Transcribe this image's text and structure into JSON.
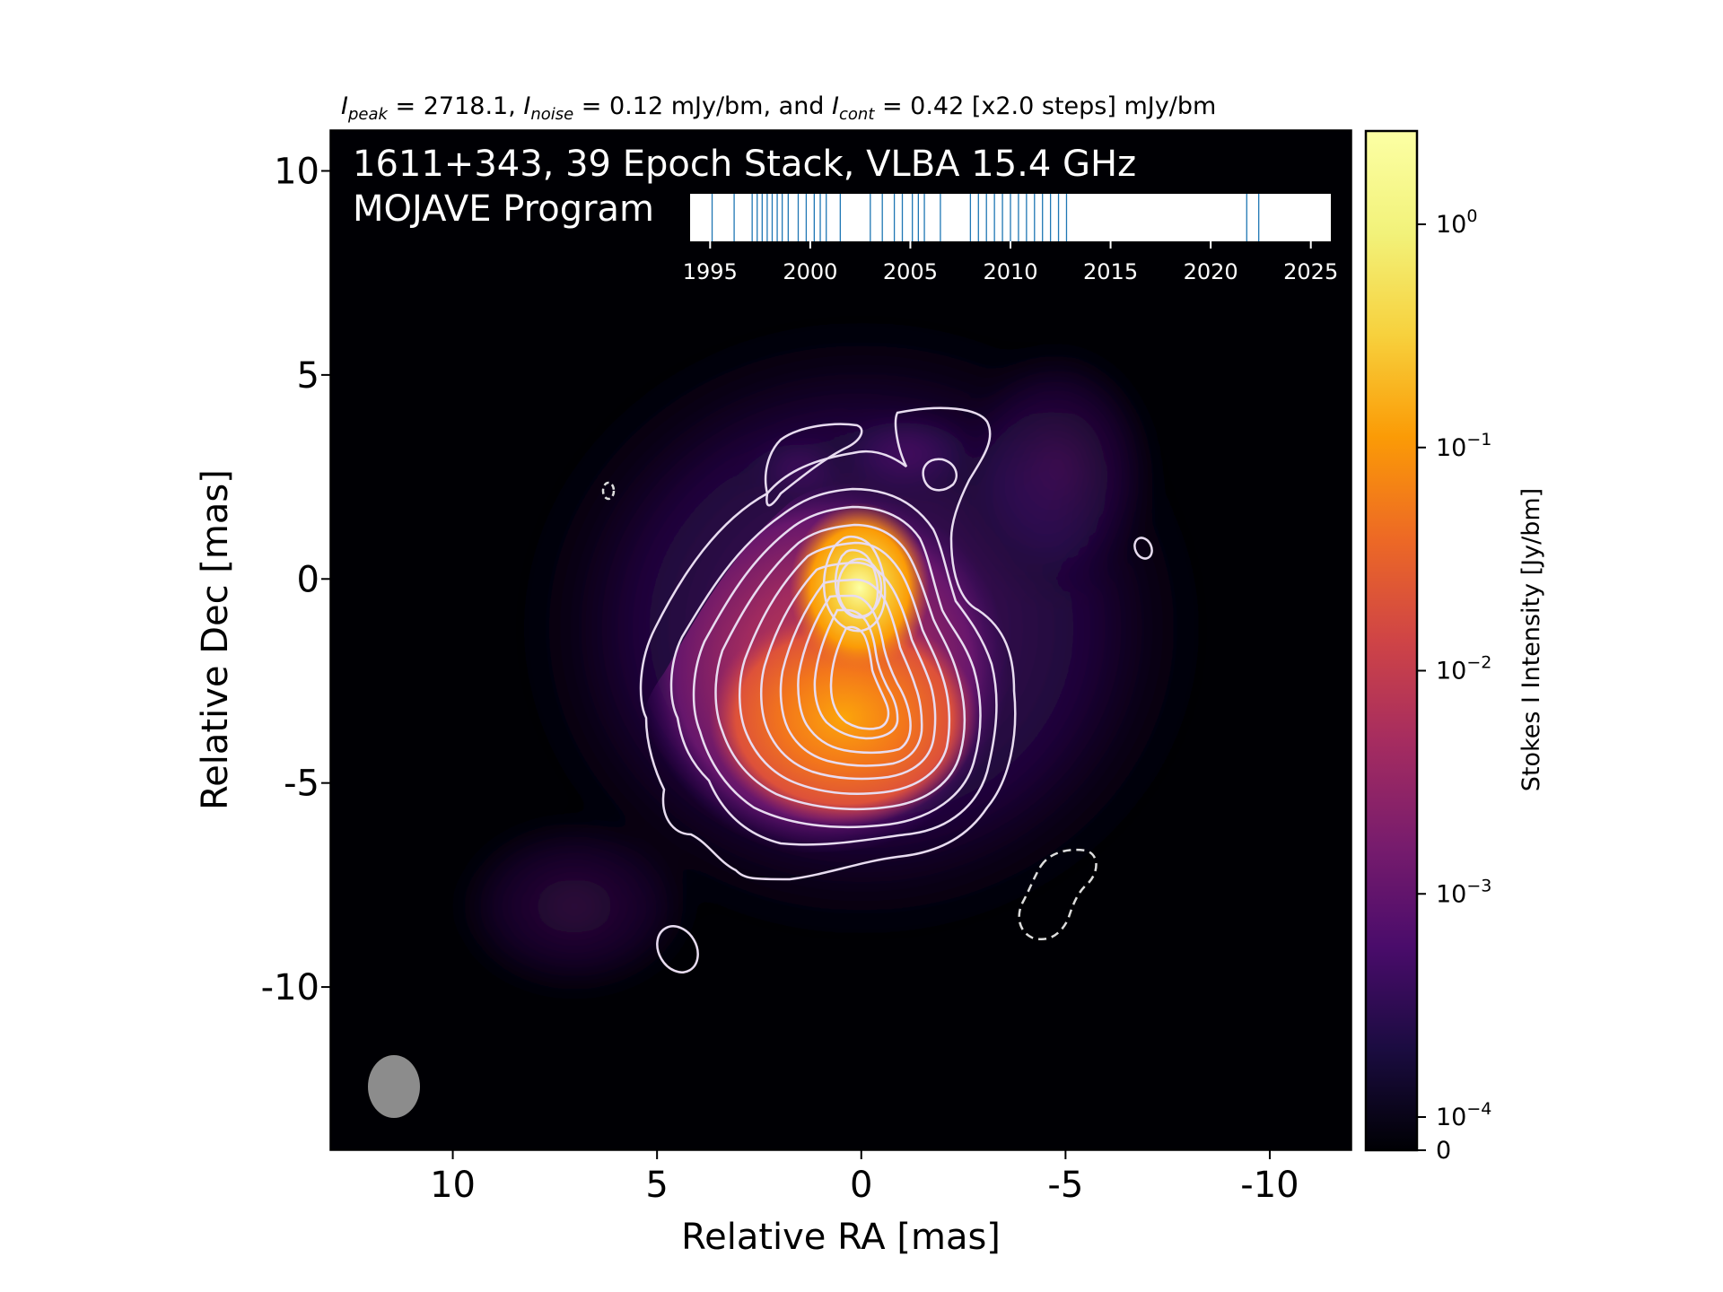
{
  "header": {
    "i_peak_sym": "I",
    "i_peak_sub": "peak",
    "i_peak_val": " = 2718.1, ",
    "i_noise_sym": "I",
    "i_noise_sub": "noise",
    "i_noise_val": " = 0.12 mJy/bm, and ",
    "i_cont_sym": "I",
    "i_cont_sub": "cont",
    "i_cont_val": " = 0.42 [x2.0 steps] mJy/bm"
  },
  "overlay": {
    "line1": "1611+343, 39 Epoch Stack, VLBA 15.4 GHz",
    "line2": "MOJAVE Program"
  },
  "colors": {
    "background": "#000000",
    "contour": "#ffffff",
    "beam": "#8c8c8c",
    "epoch_line": "#1f77b4"
  },
  "chart_data": [
    {
      "type": "heatmap",
      "title": "",
      "xlabel": "Relative RA [mas]",
      "ylabel": "Relative Dec [mas]",
      "xlim": [
        13,
        -12
      ],
      "ylim": [
        -14,
        11
      ],
      "xticks": [
        10,
        5,
        0,
        -5,
        -10
      ],
      "xtick_labels": [
        "10",
        "5",
        "0",
        "-5",
        "-10"
      ],
      "yticks": [
        10,
        5,
        0,
        -5,
        -10
      ],
      "ytick_labels": [
        "10",
        "5",
        "0",
        "-5",
        "-10"
      ],
      "colormap": "inferno",
      "colorbar": {
        "label": "Stokes I Intensity [Jy/bm]",
        "scale": "log",
        "ticks": [
          0,
          0.0001,
          0.001,
          0.01,
          0.1,
          1
        ],
        "tick_labels": [
          {
            "base": "0",
            "exp": ""
          },
          {
            "base": "10",
            "exp": "−4"
          },
          {
            "base": "10",
            "exp": "−3"
          },
          {
            "base": "10",
            "exp": "−2"
          },
          {
            "base": "10",
            "exp": "−1"
          },
          {
            "base": "10",
            "exp": "0"
          }
        ]
      },
      "peak_position": [
        0.1,
        -0.1
      ],
      "secondary_component": [
        0.6,
        -3.3
      ],
      "contour_levels_mjy": [
        0.42,
        0.84,
        1.68,
        3.36,
        6.72,
        13.44,
        26.88,
        53.76,
        107.52,
        215.04,
        430.08,
        860.16,
        1720.32
      ],
      "negative_contour_mjy": -0.42,
      "beam": {
        "center": [
          11.5,
          -12.3
        ],
        "major_mas": 2.5,
        "minor_mas": 2.0
      }
    },
    {
      "type": "scatter",
      "title": "",
      "xlim": [
        1994,
        2026
      ],
      "xticks": [
        1995,
        2000,
        2005,
        2010,
        2015,
        2020,
        2025
      ],
      "xtick_labels": [
        "1995",
        "2000",
        "2005",
        "2010",
        "2015",
        "2020",
        "2025"
      ],
      "epochs": [
        1995.1,
        1996.2,
        1997.1,
        1997.35,
        1997.6,
        1997.85,
        1998.1,
        1998.35,
        1998.6,
        1998.9,
        1999.4,
        1999.8,
        2000.2,
        2000.5,
        2000.8,
        2001.5,
        2003.0,
        2003.6,
        2004.2,
        2004.6,
        2005.1,
        2005.4,
        2005.7,
        2006.5,
        2008.0,
        2008.4,
        2008.8,
        2009.2,
        2009.6,
        2010.0,
        2010.4,
        2010.8,
        2011.2,
        2011.6,
        2012.0,
        2012.4,
        2012.8,
        2021.8,
        2022.4
      ]
    }
  ]
}
